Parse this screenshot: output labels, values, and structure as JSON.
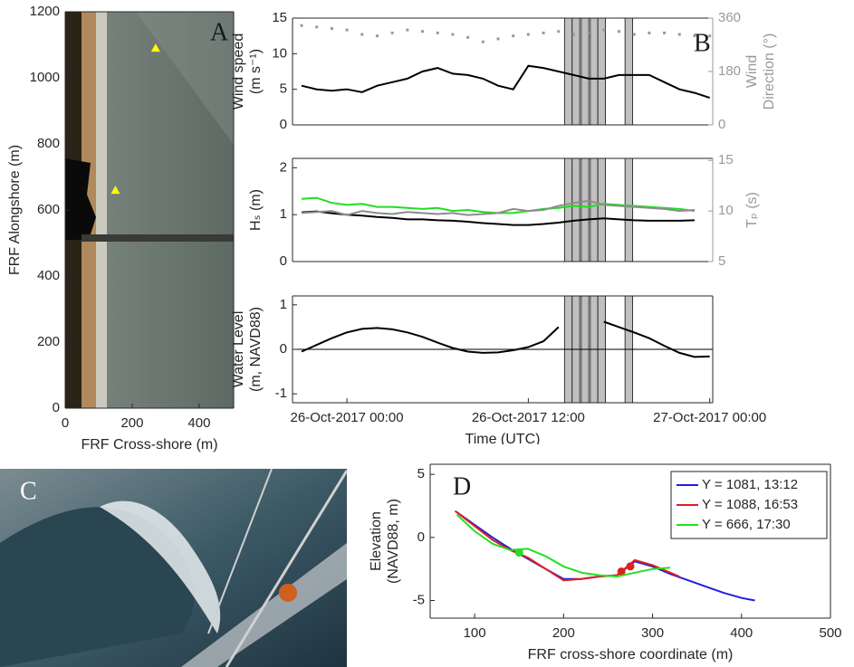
{
  "chart_data": [
    {
      "type": "scatter",
      "panel_label": "A",
      "xlabel": "FRF Cross-shore (m)",
      "ylabel": [
        "FRF Alongshore (m)"
      ],
      "x": [
        270,
        150
      ],
      "values": [
        1090,
        660
      ],
      "color": "#ffff00",
      "xlim": [
        0,
        503
      ],
      "ylim": [
        0,
        1200
      ],
      "xticks": [
        0,
        200,
        400
      ],
      "yticks": [
        0,
        200,
        400,
        600,
        800,
        1000,
        1200
      ]
    },
    {
      "type": "line",
      "panel_label": "B",
      "ylabel": [
        "Wind speed",
        "(m s⁻¹)"
      ],
      "y2label": [
        "Wind",
        "Direction (°)"
      ],
      "x": [
        -3,
        -2,
        -1,
        0,
        1,
        2,
        3,
        4,
        5,
        6,
        7,
        8,
        9,
        10,
        11,
        12,
        13,
        14,
        15,
        16,
        17,
        18,
        19,
        20,
        21,
        22,
        23,
        24
      ],
      "series": [
        {
          "color": "#000000",
          "values": [
            5.5,
            5.0,
            4.8,
            5.0,
            4.6,
            5.5,
            6.0,
            6.5,
            7.5,
            8.0,
            7.2,
            7.0,
            6.5,
            5.5,
            5.0,
            8.3,
            8.0,
            7.5,
            7.0,
            6.5,
            6.5,
            7.0,
            7.0,
            7.0,
            6.0,
            5.0,
            4.5,
            3.8
          ]
        },
        {
          "color": "#999999",
          "style": "markers",
          "axis": "y2",
          "values": [
            335,
            330,
            325,
            320,
            305,
            300,
            310,
            320,
            315,
            310,
            305,
            295,
            280,
            290,
            300,
            305,
            310,
            315,
            305,
            310,
            320,
            315,
            305,
            310,
            310,
            305,
            300,
            300
          ]
        }
      ],
      "shaded_intervals": [
        [
          14.4,
          14.9
        ],
        [
          14.9,
          15.4
        ],
        [
          15.5,
          16.0
        ],
        [
          16.1,
          16.6
        ],
        [
          16.6,
          17.1
        ],
        [
          18.4,
          18.9
        ]
      ],
      "xlim": [
        -3.6,
        24.2
      ],
      "ylim": [
        0,
        15
      ],
      "yticks": [
        0,
        5,
        10,
        15
      ],
      "y2lim": [
        0,
        360
      ],
      "y2ticks": [
        0,
        180,
        360
      ],
      "y2color": "#999999"
    },
    {
      "type": "line",
      "ylabel": [
        "Hₛ (m)"
      ],
      "y2label": [
        "Tₚ (s)"
      ],
      "x": [
        -3,
        -2,
        -1,
        0,
        1,
        2,
        3,
        4,
        5,
        6,
        7,
        8,
        9,
        10,
        11,
        12,
        13,
        14,
        15,
        16,
        17,
        18,
        19,
        20,
        21,
        22,
        23
      ],
      "series": [
        {
          "color": "#000000",
          "values": [
            1.05,
            1.07,
            1.03,
            1.0,
            0.98,
            0.95,
            0.93,
            0.9,
            0.9,
            0.88,
            0.87,
            0.85,
            0.82,
            0.8,
            0.78,
            0.78,
            0.8,
            0.83,
            0.87,
            0.9,
            0.92,
            0.9,
            0.88,
            0.87,
            0.87,
            0.87,
            0.88
          ]
        },
        {
          "color": "#22dd22",
          "axis": "y2",
          "values": [
            11.2,
            11.3,
            10.8,
            10.6,
            10.7,
            10.4,
            10.4,
            10.3,
            10.2,
            10.3,
            10.0,
            10.1,
            9.9,
            9.8,
            9.8,
            10.0,
            10.2,
            10.3,
            10.5,
            10.4,
            10.7,
            10.6,
            10.5,
            10.4,
            10.3,
            10.2,
            10.0
          ]
        },
        {
          "color": "#8c8c8c",
          "axis": "y2",
          "values": [
            9.8,
            9.9,
            10.0,
            9.6,
            10.0,
            9.8,
            9.7,
            9.9,
            9.8,
            9.7,
            9.8,
            9.6,
            9.7,
            9.8,
            10.2,
            10.0,
            10.1,
            10.5,
            10.8,
            11.0,
            10.6,
            10.5,
            10.4,
            10.3,
            10.2,
            10.0,
            10.1
          ]
        }
      ],
      "shaded_intervals": [
        [
          14.4,
          14.9
        ],
        [
          14.9,
          15.4
        ],
        [
          15.5,
          16.0
        ],
        [
          16.1,
          16.6
        ],
        [
          16.6,
          17.1
        ],
        [
          18.4,
          18.9
        ]
      ],
      "xlim": [
        -3.6,
        24.2
      ],
      "ylim": [
        0,
        2.2
      ],
      "yticks": [
        0,
        1,
        2
      ],
      "y2lim": [
        5,
        15.2
      ],
      "y2ticks": [
        5,
        10,
        15
      ],
      "y2color": "#999999"
    },
    {
      "type": "line",
      "ylabel": [
        "Water Level",
        "(m, NAVD88)"
      ],
      "xlabel": "Time (UTC)",
      "x": [
        -3,
        -2,
        -1,
        0,
        1,
        2,
        3,
        4,
        5,
        6,
        7,
        8,
        9,
        10,
        11,
        12,
        13,
        14,
        15,
        16,
        17,
        18,
        19,
        20,
        21,
        22,
        23,
        24
      ],
      "series": [
        {
          "color": "#000000",
          "values": [
            -0.05,
            0.1,
            0.25,
            0.38,
            0.46,
            0.48,
            0.45,
            0.38,
            0.28,
            0.15,
            0.03,
            -0.05,
            -0.08,
            -0.07,
            -0.02,
            0.05,
            0.18,
            0.5,
            null,
            null,
            0.62,
            0.5,
            0.38,
            0.25,
            0.08,
            -0.08,
            -0.17,
            -0.16
          ]
        }
      ],
      "hline": 0,
      "shaded_intervals": [
        [
          14.4,
          14.9
        ],
        [
          14.9,
          15.4
        ],
        [
          15.5,
          16.0
        ],
        [
          16.1,
          16.6
        ],
        [
          16.6,
          17.1
        ],
        [
          18.4,
          18.9
        ]
      ],
      "xlim": [
        -3.6,
        24.2
      ],
      "ylim": [
        -1.2,
        1.2
      ],
      "yticks": [
        -1,
        0,
        1
      ],
      "xticks": [
        {
          "value": 0,
          "label": "26-Oct-2017 00:00"
        },
        {
          "value": 12,
          "label": "26-Oct-2017 12:00"
        },
        {
          "value": 24,
          "label": "27-Oct-2017 00:00"
        }
      ]
    },
    {
      "type": "image",
      "panel_label": "C"
    },
    {
      "type": "line",
      "panel_label": "D",
      "xlabel": "FRF cross-shore coordinate (m)",
      "ylabel": [
        "Elevation",
        "(NAVD88, m)"
      ],
      "legend": "upper right",
      "series": [
        {
          "name": "Y = 1081, 13:12",
          "color": "#1f1fe0",
          "x": [
            80,
            100,
            120,
            140,
            160,
            180,
            200,
            220,
            240,
            260,
            280,
            300,
            320,
            340,
            360,
            380,
            400,
            415
          ],
          "values": [
            2,
            1,
            0,
            -0.9,
            -1.7,
            -2.5,
            -3.3,
            -3.3,
            -3.1,
            -3.0,
            -1.9,
            -2.3,
            -2.9,
            -3.4,
            -3.9,
            -4.4,
            -4.8,
            -5.0
          ]
        },
        {
          "name": "Y = 1088, 16:53",
          "color": "#e01f1f",
          "x": [
            78,
            100,
            120,
            140,
            160,
            180,
            200,
            220,
            240,
            260,
            270,
            280,
            300,
            320,
            330
          ],
          "values": [
            2.1,
            0.9,
            -0.2,
            -1,
            -1.6,
            -2.5,
            -3.4,
            -3.3,
            -3.1,
            -3.0,
            -2.4,
            -1.8,
            -2.2,
            -2.8,
            -3.1
          ],
          "points": {
            "x": [
              265,
              275
            ],
            "y": [
              -2.7,
              -2.3
            ]
          }
        },
        {
          "name": "Y = 666, 17:30",
          "color": "#22e022",
          "x": [
            80,
            100,
            120,
            140,
            160,
            180,
            200,
            220,
            240,
            260,
            280,
            300,
            320
          ],
          "values": [
            1.8,
            0.5,
            -0.5,
            -1.0,
            -0.9,
            -1.5,
            -2.3,
            -2.8,
            -3.0,
            -3.1,
            -2.8,
            -2.5,
            -2.4
          ],
          "points": {
            "x": [
              150
            ],
            "y": [
              -1.2
            ]
          }
        }
      ],
      "xlim": [
        50,
        500
      ],
      "ylim": [
        -6.4,
        5.8
      ],
      "xticks": [
        100,
        200,
        300,
        400,
        500
      ],
      "yticks": [
        -5,
        0,
        5
      ]
    }
  ]
}
